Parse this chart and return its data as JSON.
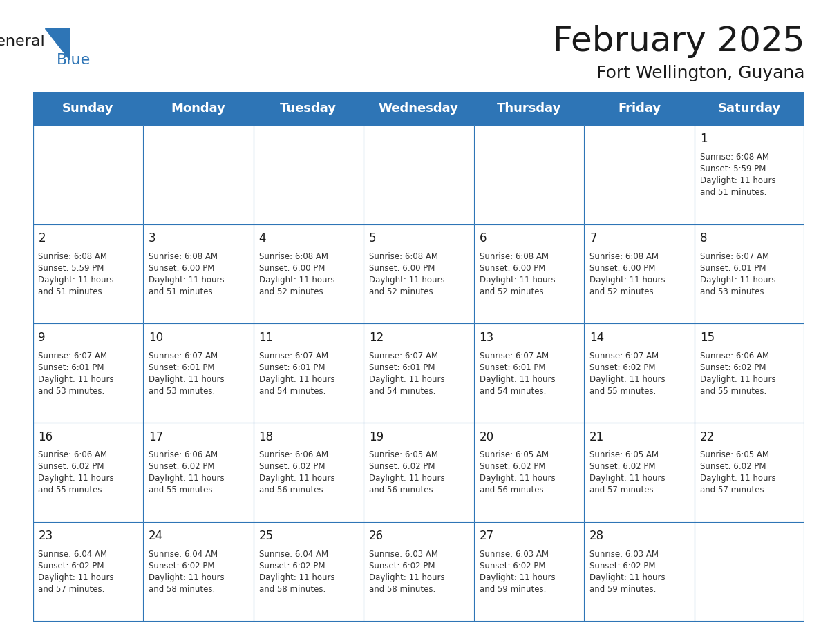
{
  "title": "February 2025",
  "subtitle": "Fort Wellington, Guyana",
  "header_bg": "#2E75B6",
  "header_text_color": "#FFFFFF",
  "cell_bg": "#FFFFFF",
  "border_color": "#2E75B6",
  "day_names": [
    "Sunday",
    "Monday",
    "Tuesday",
    "Wednesday",
    "Thursday",
    "Friday",
    "Saturday"
  ],
  "title_fontsize": 36,
  "subtitle_fontsize": 18,
  "header_fontsize": 13,
  "day_num_fontsize": 12,
  "cell_fontsize": 8.5,
  "logo_text1": "General",
  "logo_text2": "Blue",
  "logo_color1": "#1a1a1a",
  "logo_color2": "#2E75B6",
  "weeks": [
    [
      {
        "day": null,
        "text": ""
      },
      {
        "day": null,
        "text": ""
      },
      {
        "day": null,
        "text": ""
      },
      {
        "day": null,
        "text": ""
      },
      {
        "day": null,
        "text": ""
      },
      {
        "day": null,
        "text": ""
      },
      {
        "day": 1,
        "text": "Sunrise: 6:08 AM\nSunset: 5:59 PM\nDaylight: 11 hours\nand 51 minutes."
      }
    ],
    [
      {
        "day": 2,
        "text": "Sunrise: 6:08 AM\nSunset: 5:59 PM\nDaylight: 11 hours\nand 51 minutes."
      },
      {
        "day": 3,
        "text": "Sunrise: 6:08 AM\nSunset: 6:00 PM\nDaylight: 11 hours\nand 51 minutes."
      },
      {
        "day": 4,
        "text": "Sunrise: 6:08 AM\nSunset: 6:00 PM\nDaylight: 11 hours\nand 52 minutes."
      },
      {
        "day": 5,
        "text": "Sunrise: 6:08 AM\nSunset: 6:00 PM\nDaylight: 11 hours\nand 52 minutes."
      },
      {
        "day": 6,
        "text": "Sunrise: 6:08 AM\nSunset: 6:00 PM\nDaylight: 11 hours\nand 52 minutes."
      },
      {
        "day": 7,
        "text": "Sunrise: 6:08 AM\nSunset: 6:00 PM\nDaylight: 11 hours\nand 52 minutes."
      },
      {
        "day": 8,
        "text": "Sunrise: 6:07 AM\nSunset: 6:01 PM\nDaylight: 11 hours\nand 53 minutes."
      }
    ],
    [
      {
        "day": 9,
        "text": "Sunrise: 6:07 AM\nSunset: 6:01 PM\nDaylight: 11 hours\nand 53 minutes."
      },
      {
        "day": 10,
        "text": "Sunrise: 6:07 AM\nSunset: 6:01 PM\nDaylight: 11 hours\nand 53 minutes."
      },
      {
        "day": 11,
        "text": "Sunrise: 6:07 AM\nSunset: 6:01 PM\nDaylight: 11 hours\nand 54 minutes."
      },
      {
        "day": 12,
        "text": "Sunrise: 6:07 AM\nSunset: 6:01 PM\nDaylight: 11 hours\nand 54 minutes."
      },
      {
        "day": 13,
        "text": "Sunrise: 6:07 AM\nSunset: 6:01 PM\nDaylight: 11 hours\nand 54 minutes."
      },
      {
        "day": 14,
        "text": "Sunrise: 6:07 AM\nSunset: 6:02 PM\nDaylight: 11 hours\nand 55 minutes."
      },
      {
        "day": 15,
        "text": "Sunrise: 6:06 AM\nSunset: 6:02 PM\nDaylight: 11 hours\nand 55 minutes."
      }
    ],
    [
      {
        "day": 16,
        "text": "Sunrise: 6:06 AM\nSunset: 6:02 PM\nDaylight: 11 hours\nand 55 minutes."
      },
      {
        "day": 17,
        "text": "Sunrise: 6:06 AM\nSunset: 6:02 PM\nDaylight: 11 hours\nand 55 minutes."
      },
      {
        "day": 18,
        "text": "Sunrise: 6:06 AM\nSunset: 6:02 PM\nDaylight: 11 hours\nand 56 minutes."
      },
      {
        "day": 19,
        "text": "Sunrise: 6:05 AM\nSunset: 6:02 PM\nDaylight: 11 hours\nand 56 minutes."
      },
      {
        "day": 20,
        "text": "Sunrise: 6:05 AM\nSunset: 6:02 PM\nDaylight: 11 hours\nand 56 minutes."
      },
      {
        "day": 21,
        "text": "Sunrise: 6:05 AM\nSunset: 6:02 PM\nDaylight: 11 hours\nand 57 minutes."
      },
      {
        "day": 22,
        "text": "Sunrise: 6:05 AM\nSunset: 6:02 PM\nDaylight: 11 hours\nand 57 minutes."
      }
    ],
    [
      {
        "day": 23,
        "text": "Sunrise: 6:04 AM\nSunset: 6:02 PM\nDaylight: 11 hours\nand 57 minutes."
      },
      {
        "day": 24,
        "text": "Sunrise: 6:04 AM\nSunset: 6:02 PM\nDaylight: 11 hours\nand 58 minutes."
      },
      {
        "day": 25,
        "text": "Sunrise: 6:04 AM\nSunset: 6:02 PM\nDaylight: 11 hours\nand 58 minutes."
      },
      {
        "day": 26,
        "text": "Sunrise: 6:03 AM\nSunset: 6:02 PM\nDaylight: 11 hours\nand 58 minutes."
      },
      {
        "day": 27,
        "text": "Sunrise: 6:03 AM\nSunset: 6:02 PM\nDaylight: 11 hours\nand 59 minutes."
      },
      {
        "day": 28,
        "text": "Sunrise: 6:03 AM\nSunset: 6:02 PM\nDaylight: 11 hours\nand 59 minutes."
      },
      {
        "day": null,
        "text": ""
      }
    ]
  ]
}
